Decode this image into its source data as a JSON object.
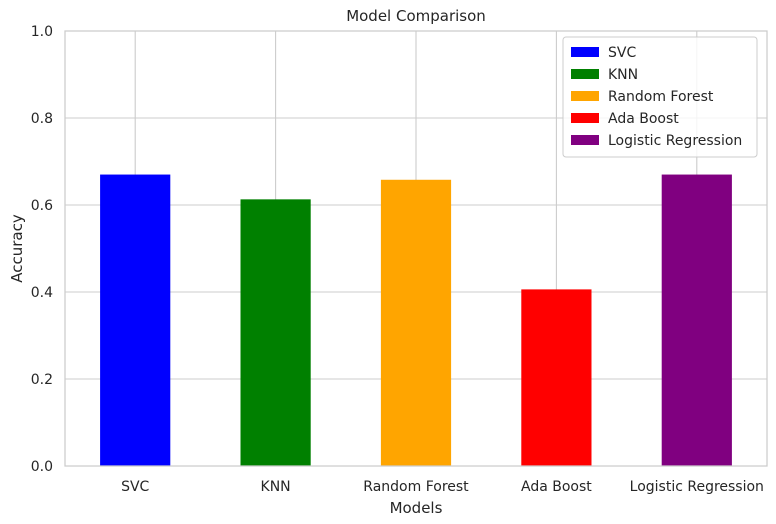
{
  "chart_data": {
    "type": "bar",
    "title": "Model Comparison",
    "xlabel": "Models",
    "ylabel": "Accuracy",
    "categories": [
      "SVC",
      "KNN",
      "Random Forest",
      "Ada Boost",
      "Logistic Regression"
    ],
    "values": [
      0.67,
      0.613,
      0.658,
      0.406,
      0.67
    ],
    "colors": [
      "#0000ff",
      "#008000",
      "#ffa500",
      "#ff0000",
      "#800080"
    ],
    "ylim": [
      0,
      1.0
    ],
    "yticks": [
      "0.0",
      "0.2",
      "0.4",
      "0.6",
      "0.8",
      "1.0"
    ],
    "grid": true,
    "legend": {
      "placement": "top-right",
      "entries": [
        "SVC",
        "KNN",
        "Random Forest",
        "Ada Boost",
        "Logistic Regression"
      ]
    }
  }
}
